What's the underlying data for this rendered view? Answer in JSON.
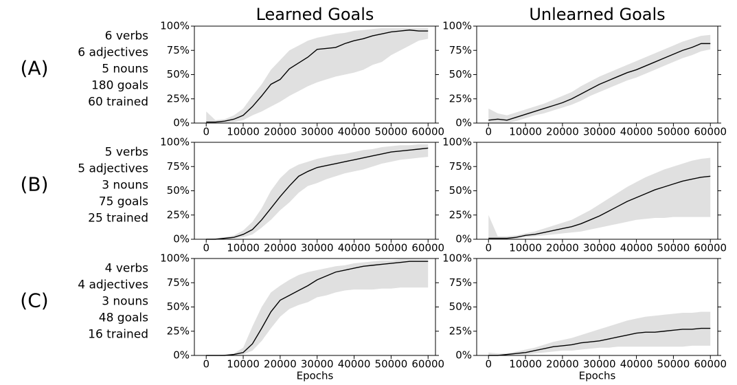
{
  "column_titles": [
    "Learned Goals",
    "Unlearned Goals"
  ],
  "rows": [
    {
      "label": "(A)",
      "lines": [
        "6 verbs",
        "6 adjectives",
        "5 nouns",
        "180 goals",
        "60 trained"
      ]
    },
    {
      "label": "(B)",
      "lines": [
        "5 verbs",
        "5 adjectives",
        "3 nouns",
        "75 goals",
        "25 trained"
      ]
    },
    {
      "label": "(C)",
      "lines": [
        "4 verbs",
        "4 adjectives",
        "3 nouns",
        "48 goals",
        "16 trained"
      ]
    }
  ],
  "chart_data": [
    {
      "type": "line",
      "color": "#000000",
      "band_color": "#e0e0e0",
      "x": [
        0,
        2500,
        5000,
        7500,
        10000,
        12500,
        15000,
        17500,
        20000,
        22500,
        25000,
        27500,
        30000,
        32500,
        35000,
        37500,
        40000,
        42500,
        45000,
        47500,
        50000,
        52500,
        55000,
        57500,
        60000
      ],
      "values": [
        1,
        1,
        2,
        4,
        8,
        17,
        28,
        40,
        45,
        56,
        62,
        68,
        76,
        77,
        78,
        82,
        85,
        87,
        90,
        92,
        94,
        95,
        96,
        95,
        95
      ],
      "lower": [
        0,
        0,
        0,
        1,
        3,
        8,
        12,
        17,
        22,
        28,
        33,
        38,
        42,
        45,
        48,
        50,
        52,
        55,
        60,
        63,
        70,
        75,
        80,
        85,
        87
      ],
      "upper": [
        12,
        3,
        4,
        8,
        15,
        28,
        40,
        55,
        65,
        75,
        80,
        85,
        88,
        90,
        92,
        93,
        95,
        96,
        97,
        98,
        98,
        98,
        98,
        98,
        98
      ],
      "xlim": [
        -3200,
        62000
      ],
      "ylim": [
        0,
        100
      ],
      "xticks": [
        0,
        10000,
        20000,
        30000,
        40000,
        50000,
        60000
      ],
      "yticks": [
        {
          "value": 0,
          "label": "0%"
        },
        {
          "value": 25,
          "label": "25%"
        },
        {
          "value": 50,
          "label": "50%"
        },
        {
          "value": 75,
          "label": "75%"
        },
        {
          "value": 100,
          "label": "100%"
        }
      ]
    },
    {
      "type": "line",
      "color": "#000000",
      "band_color": "#e0e0e0",
      "x": [
        0,
        2500,
        5000,
        7500,
        10000,
        12500,
        15000,
        17500,
        20000,
        22500,
        25000,
        27500,
        30000,
        32500,
        35000,
        37500,
        40000,
        42500,
        45000,
        47500,
        50000,
        52500,
        55000,
        57500,
        60000
      ],
      "values": [
        3,
        4,
        3,
        6,
        9,
        12,
        15,
        18,
        21,
        25,
        30,
        35,
        40,
        44,
        48,
        52,
        55,
        59,
        63,
        67,
        71,
        75,
        78,
        82,
        82
      ],
      "lower": [
        0,
        0,
        0,
        2,
        5,
        8,
        10,
        13,
        16,
        19,
        23,
        28,
        32,
        36,
        40,
        44,
        47,
        51,
        55,
        59,
        63,
        67,
        70,
        74,
        76
      ],
      "upper": [
        15,
        10,
        8,
        11,
        14,
        17,
        20,
        24,
        28,
        32,
        38,
        43,
        48,
        52,
        56,
        60,
        64,
        68,
        72,
        76,
        80,
        84,
        87,
        90,
        91
      ],
      "xlim": [
        -3200,
        62000
      ],
      "ylim": [
        0,
        100
      ],
      "xticks": [
        0,
        10000,
        20000,
        30000,
        40000,
        50000,
        60000
      ],
      "yticks": [
        {
          "value": 0,
          "label": "0%"
        },
        {
          "value": 25,
          "label": "25%"
        },
        {
          "value": 50,
          "label": "50%"
        },
        {
          "value": 75,
          "label": "75%"
        },
        {
          "value": 100,
          "label": "100%"
        }
      ]
    },
    {
      "type": "line",
      "color": "#000000",
      "band_color": "#e0e0e0",
      "x": [
        0,
        2500,
        5000,
        7500,
        10000,
        12500,
        15000,
        17500,
        20000,
        22500,
        25000,
        27500,
        30000,
        32500,
        35000,
        37500,
        40000,
        42500,
        45000,
        47500,
        50000,
        52500,
        55000,
        57500,
        60000
      ],
      "values": [
        0,
        0,
        1,
        2,
        5,
        10,
        20,
        32,
        44,
        55,
        65,
        70,
        74,
        76,
        78,
        80,
        82,
        84,
        86,
        88,
        90,
        91,
        92,
        93,
        94
      ],
      "lower": [
        0,
        0,
        0,
        1,
        2,
        5,
        12,
        20,
        30,
        38,
        48,
        55,
        58,
        62,
        65,
        68,
        70,
        72,
        75,
        78,
        80,
        82,
        83,
        84,
        85
      ],
      "upper": [
        0,
        1,
        2,
        4,
        9,
        18,
        32,
        50,
        63,
        72,
        77,
        80,
        83,
        85,
        87,
        88,
        90,
        92,
        93,
        95,
        96,
        97,
        97,
        98,
        98
      ],
      "xlim": [
        -3200,
        62000
      ],
      "ylim": [
        0,
        100
      ],
      "xticks": [
        0,
        10000,
        20000,
        30000,
        40000,
        50000,
        60000
      ],
      "yticks": [
        {
          "value": 0,
          "label": "0%"
        },
        {
          "value": 25,
          "label": "25%"
        },
        {
          "value": 50,
          "label": "50%"
        },
        {
          "value": 75,
          "label": "75%"
        },
        {
          "value": 100,
          "label": "100%"
        }
      ]
    },
    {
      "type": "line",
      "color": "#000000",
      "band_color": "#e0e0e0",
      "x": [
        0,
        2500,
        5000,
        7500,
        10000,
        12500,
        15000,
        17500,
        20000,
        22500,
        25000,
        27500,
        30000,
        32500,
        35000,
        37500,
        40000,
        42500,
        45000,
        47500,
        50000,
        52500,
        55000,
        57500,
        60000
      ],
      "values": [
        1,
        1,
        1,
        2,
        4,
        5,
        7,
        9,
        11,
        13,
        16,
        20,
        24,
        29,
        34,
        39,
        43,
        47,
        51,
        54,
        57,
        60,
        62,
        64,
        65
      ],
      "lower": [
        0,
        0,
        0,
        1,
        2,
        3,
        4,
        5,
        6,
        7,
        8,
        10,
        12,
        14,
        16,
        18,
        20,
        21,
        22,
        22,
        23,
        23,
        23,
        23,
        23
      ],
      "upper": [
        25,
        3,
        3,
        4,
        6,
        8,
        11,
        14,
        17,
        20,
        25,
        30,
        36,
        42,
        48,
        54,
        59,
        64,
        68,
        72,
        75,
        78,
        81,
        83,
        84
      ],
      "xlim": [
        -3200,
        62000
      ],
      "ylim": [
        0,
        100
      ],
      "xticks": [
        0,
        10000,
        20000,
        30000,
        40000,
        50000,
        60000
      ],
      "yticks": [
        {
          "value": 0,
          "label": "0%"
        },
        {
          "value": 25,
          "label": "25%"
        },
        {
          "value": 50,
          "label": "50%"
        },
        {
          "value": 75,
          "label": "75%"
        },
        {
          "value": 100,
          "label": "100%"
        }
      ]
    },
    {
      "type": "line",
      "color": "#000000",
      "band_color": "#e0e0e0",
      "xlabel": "Epochs",
      "x": [
        0,
        2500,
        5000,
        7500,
        10000,
        12500,
        15000,
        17500,
        20000,
        22500,
        25000,
        27500,
        30000,
        32500,
        35000,
        37500,
        40000,
        42500,
        45000,
        47500,
        50000,
        52500,
        55000,
        57500,
        60000
      ],
      "values": [
        0,
        0,
        0,
        1,
        3,
        12,
        28,
        45,
        57,
        62,
        67,
        72,
        78,
        82,
        86,
        88,
        90,
        92,
        93,
        94,
        95,
        96,
        97,
        97,
        97
      ],
      "lower": [
        0,
        0,
        0,
        0,
        1,
        5,
        15,
        28,
        40,
        48,
        52,
        55,
        60,
        62,
        65,
        67,
        68,
        68,
        68,
        69,
        69,
        70,
        70,
        70,
        70
      ],
      "upper": [
        0,
        0,
        1,
        2,
        8,
        30,
        50,
        65,
        72,
        78,
        83,
        86,
        88,
        90,
        92,
        93,
        95,
        96,
        97,
        98,
        98,
        99,
        99,
        99,
        99
      ],
      "xlim": [
        -3200,
        62000
      ],
      "ylim": [
        0,
        100
      ],
      "xticks": [
        0,
        10000,
        20000,
        30000,
        40000,
        50000,
        60000
      ],
      "yticks": [
        {
          "value": 0,
          "label": "0%"
        },
        {
          "value": 25,
          "label": "25%"
        },
        {
          "value": 50,
          "label": "50%"
        },
        {
          "value": 75,
          "label": "75%"
        },
        {
          "value": 100,
          "label": "100%"
        }
      ]
    },
    {
      "type": "line",
      "color": "#000000",
      "band_color": "#e0e0e0",
      "xlabel": "Epochs",
      "x": [
        0,
        2500,
        5000,
        7500,
        10000,
        12500,
        15000,
        17500,
        20000,
        22500,
        25000,
        27500,
        30000,
        32500,
        35000,
        37500,
        40000,
        42500,
        45000,
        47500,
        50000,
        52500,
        55000,
        57500,
        60000
      ],
      "values": [
        0,
        0,
        1,
        2,
        3,
        5,
        7,
        9,
        10,
        11,
        13,
        14,
        15,
        17,
        19,
        21,
        23,
        24,
        24,
        25,
        26,
        27,
        27,
        28,
        28
      ],
      "lower": [
        0,
        0,
        0,
        1,
        1,
        2,
        3,
        4,
        5,
        5,
        6,
        7,
        8,
        8,
        9,
        9,
        9,
        9,
        9,
        9,
        9,
        9,
        10,
        10,
        10
      ],
      "upper": [
        3,
        2,
        2,
        4,
        6,
        8,
        11,
        14,
        16,
        18,
        21,
        24,
        27,
        30,
        33,
        36,
        38,
        40,
        41,
        42,
        43,
        44,
        44,
        45,
        45
      ],
      "xlim": [
        -3200,
        62000
      ],
      "ylim": [
        0,
        100
      ],
      "xticks": [
        0,
        10000,
        20000,
        30000,
        40000,
        50000,
        60000
      ],
      "yticks": [
        {
          "value": 0,
          "label": "0%"
        },
        {
          "value": 25,
          "label": "25%"
        },
        {
          "value": 50,
          "label": "50%"
        },
        {
          "value": 75,
          "label": "75%"
        },
        {
          "value": 100,
          "label": "100%"
        }
      ]
    }
  ]
}
